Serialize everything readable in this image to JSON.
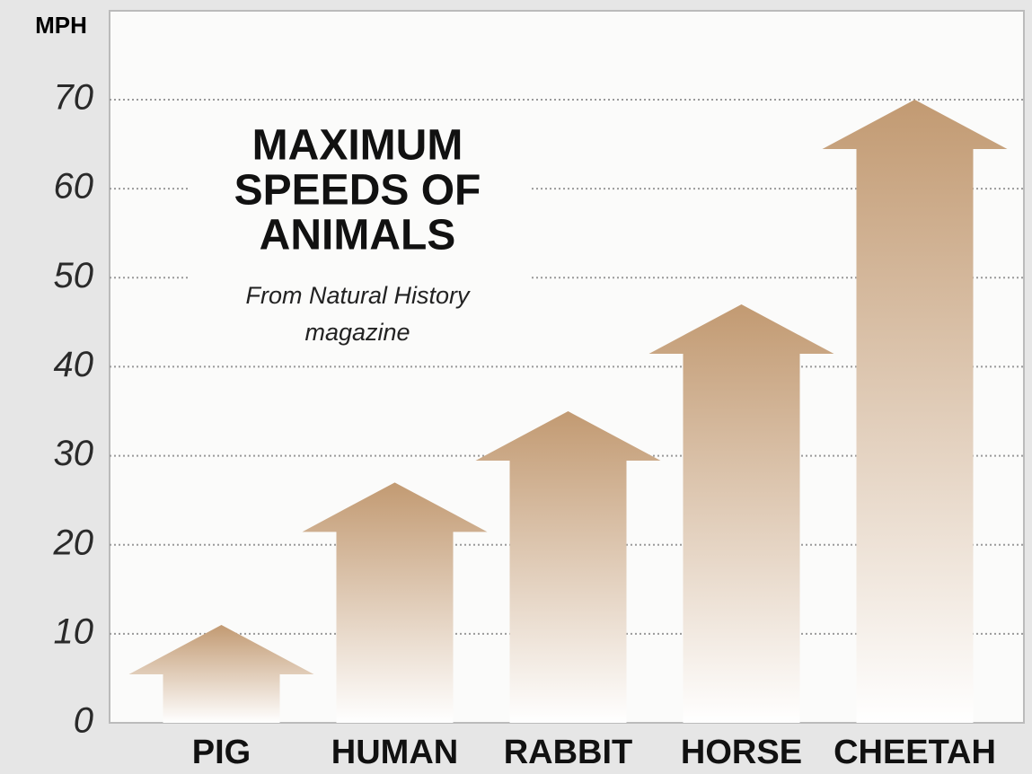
{
  "chart_data": {
    "type": "arrow-bar",
    "y_label": "MPH",
    "title": [
      "MAXIMUM",
      "SPEEDS OF",
      "ANIMALS"
    ],
    "subtitle": [
      "From Natural History",
      "magazine"
    ],
    "categories": [
      "PIG",
      "HUMAN",
      "RABBIT",
      "HORSE",
      "CHEETAH"
    ],
    "values": [
      11,
      27,
      35,
      47,
      70
    ],
    "color": "#c29a72",
    "ylim": [
      0,
      70
    ],
    "yticks": [
      0,
      10,
      20,
      30,
      40,
      50,
      60,
      70
    ],
    "grid": true
  }
}
